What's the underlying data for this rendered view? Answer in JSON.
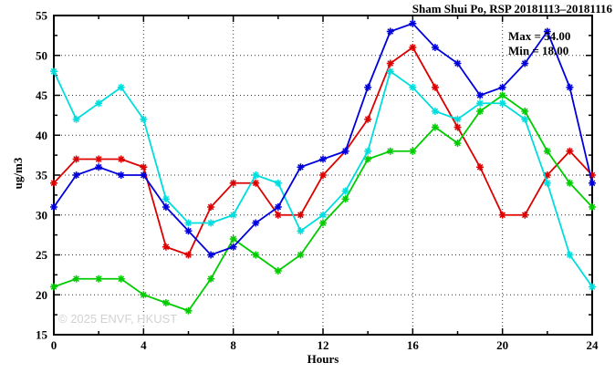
{
  "title": "Sham Shui Po, RSP 20181113–20181116",
  "legend": {
    "max_label": "Max = 54.00",
    "min_label": "Min = 18.00"
  },
  "watermark": "© 2025 ENVF, HKUST",
  "chart_data": {
    "type": "line",
    "title": "Sham Shui Po, RSP 20181113–20181116",
    "xlabel": "Hours",
    "ylabel": "ug/m3",
    "xlim": [
      0,
      24
    ],
    "ylim": [
      15,
      55
    ],
    "x_major_ticks": [
      0,
      4,
      8,
      12,
      16,
      20,
      24
    ],
    "x_minor_ticks": [
      2,
      6,
      10,
      14,
      18,
      22
    ],
    "y_major_ticks": [
      15,
      20,
      25,
      30,
      35,
      40,
      45,
      50,
      55
    ],
    "y_minor_ticks": [
      17.5,
      22.5,
      27.5,
      32.5,
      37.5,
      42.5,
      47.5,
      52.5
    ],
    "grid_x": [
      4,
      8,
      12,
      16,
      20
    ],
    "grid_y": [
      20,
      25,
      30,
      35,
      40,
      45,
      50
    ],
    "grid_style": "dotted",
    "legend_position": "top-right-inside",
    "marker": "asterisk",
    "x": [
      0,
      1,
      2,
      3,
      4,
      5,
      6,
      7,
      8,
      9,
      10,
      11,
      12,
      13,
      14,
      15,
      16,
      17,
      18,
      19,
      20,
      21,
      22,
      23,
      24
    ],
    "series": [
      {
        "name": "red",
        "color": "#dd0000",
        "values": [
          34,
          37,
          37,
          37,
          36,
          26,
          25,
          31,
          34,
          34,
          30,
          30,
          35,
          38,
          42,
          49,
          51,
          46,
          41,
          36,
          30,
          30,
          35,
          38,
          35
        ]
      },
      {
        "name": "green",
        "color": "#00cc00",
        "values": [
          21,
          22,
          22,
          22,
          20,
          19,
          18,
          22,
          27,
          25,
          23,
          25,
          29,
          32,
          37,
          38,
          38,
          41,
          39,
          43,
          45,
          43,
          38,
          34,
          31
        ]
      },
      {
        "name": "cyan",
        "color": "#00dddd",
        "values": [
          48,
          42,
          44,
          46,
          42,
          32,
          29,
          29,
          30,
          35,
          34,
          28,
          30,
          33,
          38,
          48,
          46,
          43,
          42,
          44,
          44,
          42,
          34,
          25,
          21
        ]
      },
      {
        "name": "blue",
        "color": "#0000dd",
        "values": [
          31,
          35,
          36,
          35,
          35,
          31,
          28,
          25,
          26,
          29,
          31,
          36,
          37,
          38,
          46,
          53,
          54,
          51,
          49,
          45,
          46,
          49,
          53,
          46,
          34
        ]
      }
    ],
    "annotations": {
      "max": 54.0,
      "min": 18.0
    }
  }
}
